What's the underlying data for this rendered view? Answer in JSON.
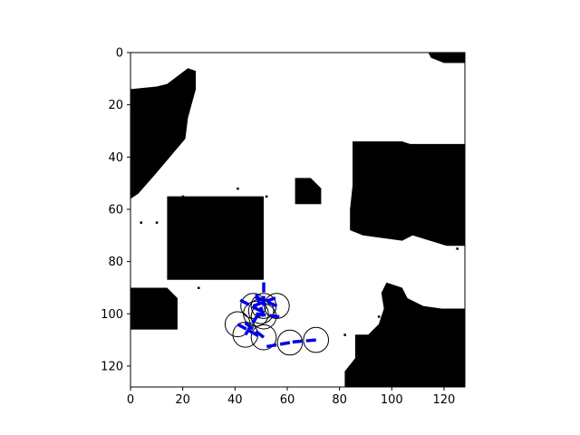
{
  "chart_data": {
    "type": "heatmap",
    "title": "",
    "xlabel": "",
    "ylabel": "",
    "xlim": [
      0,
      128
    ],
    "ylim": [
      128,
      0
    ],
    "xticks": [
      0,
      20,
      40,
      60,
      80,
      100,
      120
    ],
    "yticks": [
      0,
      20,
      40,
      60,
      80,
      100,
      120
    ],
    "grid": false,
    "occupancy_map": {
      "free_color": "#ffffff",
      "occupied_color": "#000000",
      "obstacles": [
        {
          "name": "top-left-slab",
          "points": [
            [
              0,
              40
            ],
            [
              0,
              14
            ],
            [
              10,
              13
            ],
            [
              14,
              12
            ],
            [
              22,
              6
            ],
            [
              25,
              7
            ],
            [
              25,
              14
            ],
            [
              22,
              25
            ],
            [
              21,
              33
            ],
            [
              10,
              46
            ],
            [
              3,
              54
            ],
            [
              0,
              56
            ]
          ]
        },
        {
          "name": "left-block",
          "points": [
            [
              14,
              55
            ],
            [
              51,
              55
            ],
            [
              51,
              87
            ],
            [
              14,
              87
            ]
          ]
        },
        {
          "name": "small-square",
          "points": [
            [
              63,
              48
            ],
            [
              69,
              48
            ],
            [
              73,
              52
            ],
            [
              73,
              58
            ],
            [
              63,
              58
            ]
          ]
        },
        {
          "name": "right-block",
          "points": [
            [
              85,
              34
            ],
            [
              104,
              34
            ],
            [
              107,
              35
            ],
            [
              128,
              35
            ],
            [
              128,
              74
            ],
            [
              121,
              74
            ],
            [
              108,
              70
            ],
            [
              104,
              72
            ],
            [
              89,
              70
            ],
            [
              84,
              68
            ],
            [
              84,
              60
            ],
            [
              85,
              51
            ]
          ]
        },
        {
          "name": "top-right-corner",
          "points": [
            [
              114,
              0
            ],
            [
              128,
              0
            ],
            [
              128,
              4
            ],
            [
              120,
              4
            ],
            [
              115,
              2
            ]
          ]
        },
        {
          "name": "bottom-left-blob",
          "points": [
            [
              0,
              90
            ],
            [
              14,
              90
            ],
            [
              18,
              94
            ],
            [
              18,
              106
            ],
            [
              0,
              106
            ]
          ]
        },
        {
          "name": "bottom-right-mass",
          "points": [
            [
              98,
              88
            ],
            [
              104,
              90
            ],
            [
              106,
              94
            ],
            [
              112,
              97
            ],
            [
              119,
              98
            ],
            [
              128,
              98
            ],
            [
              128,
              128
            ],
            [
              82,
              128
            ],
            [
              82,
              122
            ],
            [
              86,
              117
            ],
            [
              86,
              108
            ],
            [
              91,
              108
            ],
            [
              95,
              104
            ],
            [
              97,
              98
            ],
            [
              96,
              92
            ]
          ]
        }
      ],
      "speckles": [
        [
          20,
          55
        ],
        [
          41,
          52
        ],
        [
          52,
          55
        ],
        [
          4,
          65
        ],
        [
          26,
          90
        ],
        [
          95,
          101
        ],
        [
          82,
          108
        ],
        [
          111,
          97
        ],
        [
          125,
          75
        ],
        [
          10,
          65
        ]
      ]
    },
    "poses": [
      {
        "x": 71,
        "y": 110,
        "theta_deg": 175
      },
      {
        "x": 61,
        "y": 111,
        "theta_deg": 170
      },
      {
        "x": 51,
        "y": 109,
        "theta_deg": 218
      },
      {
        "x": 44,
        "y": 108,
        "theta_deg": 302
      },
      {
        "x": 41,
        "y": 104,
        "theta_deg": 29
      },
      {
        "x": 48,
        "y": 100,
        "theta_deg": 7
      },
      {
        "x": 51,
        "y": 101,
        "theta_deg": 252
      },
      {
        "x": 56,
        "y": 97,
        "theta_deg": 203
      },
      {
        "x": 47,
        "y": 97,
        "theta_deg": 340
      },
      {
        "x": 51,
        "y": 97,
        "theta_deg": 270
      },
      {
        "x": 50,
        "y": 99,
        "theta_deg": 208
      }
    ],
    "robot_radius": 4.8,
    "heading_length": 9.5,
    "heading_color": "#0000e6"
  }
}
